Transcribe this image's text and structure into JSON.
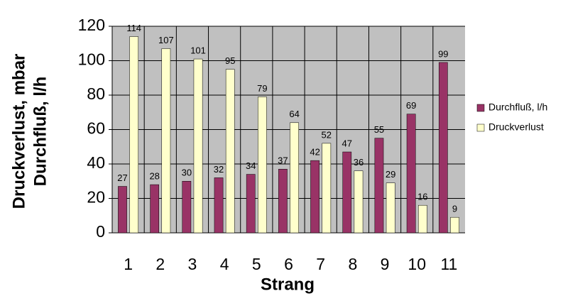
{
  "chart_data": {
    "type": "bar",
    "x_label": "Strang",
    "y_label": [
      "Druckverlust, mbar",
      "Durchfluß, l/h"
    ],
    "categories": [
      "1",
      "2",
      "3",
      "4",
      "5",
      "6",
      "7",
      "8",
      "9",
      "10",
      "11"
    ],
    "series": [
      {
        "name": "Durchfluß, l/h",
        "color": "#993366",
        "values": [
          27,
          28,
          30,
          32,
          34,
          37,
          42,
          47,
          55,
          69,
          99
        ]
      },
      {
        "name": "Druckverlust",
        "color": "#ffffcc",
        "values": [
          114,
          107,
          101,
          95,
          79,
          64,
          52,
          36,
          29,
          16,
          9
        ]
      }
    ],
    "ylim": [
      0,
      120
    ],
    "yticks": [
      0,
      20,
      40,
      60,
      80,
      100,
      120
    ],
    "grid": true,
    "legend": "right"
  }
}
